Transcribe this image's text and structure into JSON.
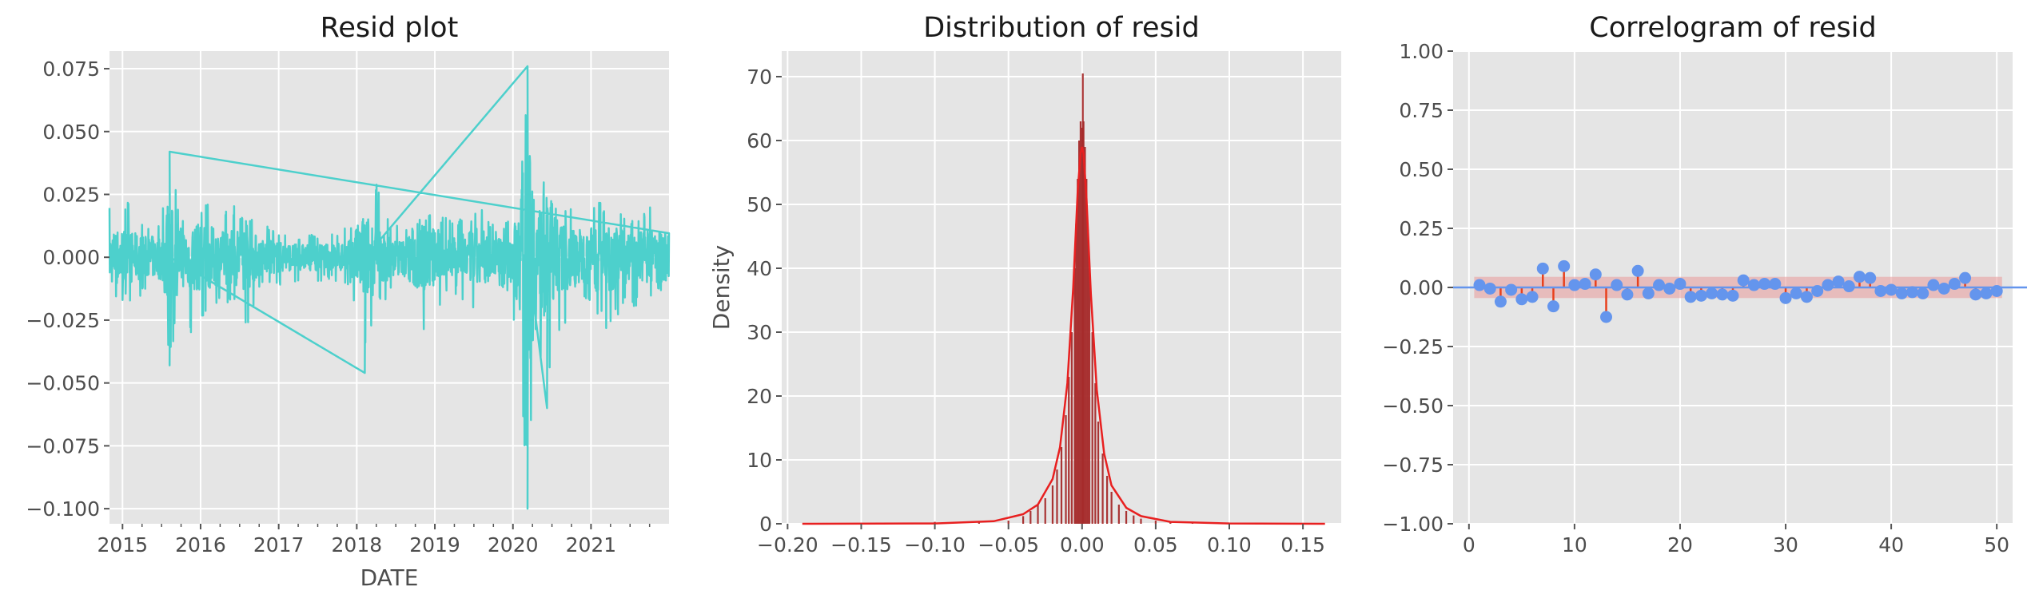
{
  "figure": {
    "panels": [
      "resid_plot",
      "distribution",
      "correlogram"
    ]
  },
  "chart_data": [
    {
      "type": "line",
      "title": "Resid plot",
      "xlabel": "DATE",
      "ylabel": "",
      "x_ticks": [
        "2015",
        "2016",
        "2017",
        "2018",
        "2019",
        "2020",
        "2021"
      ],
      "y_ticks": [
        "0.075",
        "0.050",
        "0.025",
        "0.000",
        "−0.025",
        "−0.050",
        "−0.075",
        "−0.100"
      ],
      "xlim": [
        "2014-11-01",
        "2021-12-31"
      ],
      "ylim": [
        -0.106,
        0.082
      ],
      "grid": true,
      "series_color": "#4dd0cc",
      "envelope": [
        [
          "2014-11",
          0.02,
          -0.018
        ],
        [
          "2015-01",
          0.025,
          -0.02
        ],
        [
          "2015-03",
          0.018,
          -0.017
        ],
        [
          "2015-05",
          0.015,
          -0.015
        ],
        [
          "2015-07",
          0.016,
          -0.017
        ],
        [
          "2015-08",
          0.042,
          -0.043
        ],
        [
          "2015-10",
          0.018,
          -0.025
        ],
        [
          "2015-12",
          0.017,
          -0.033
        ],
        [
          "2016-02",
          0.022,
          -0.025
        ],
        [
          "2016-04",
          0.02,
          -0.018
        ],
        [
          "2016-06",
          0.021,
          -0.02
        ],
        [
          "2016-08",
          0.016,
          -0.034
        ],
        [
          "2016-10",
          0.015,
          -0.013
        ],
        [
          "2016-12",
          0.012,
          -0.012
        ],
        [
          "2017-03",
          0.009,
          -0.01
        ],
        [
          "2017-06",
          0.009,
          -0.01
        ],
        [
          "2017-09",
          0.01,
          -0.009
        ],
        [
          "2017-12",
          0.013,
          -0.012
        ],
        [
          "2018-02",
          0.018,
          -0.046
        ],
        [
          "2018-04",
          0.03,
          -0.022
        ],
        [
          "2018-06",
          0.015,
          -0.015
        ],
        [
          "2018-08",
          0.013,
          -0.012
        ],
        [
          "2018-10",
          0.015,
          -0.034
        ],
        [
          "2018-12",
          0.02,
          -0.03
        ],
        [
          "2019-02",
          0.017,
          -0.02
        ],
        [
          "2019-04",
          0.016,
          -0.014
        ],
        [
          "2019-06",
          0.015,
          -0.02
        ],
        [
          "2019-08",
          0.02,
          -0.025
        ],
        [
          "2019-10",
          0.013,
          -0.015
        ],
        [
          "2019-12",
          0.014,
          -0.012
        ],
        [
          "2020-02",
          0.03,
          -0.04
        ],
        [
          "2020-03",
          0.076,
          -0.1
        ],
        [
          "2020-04",
          0.055,
          -0.08
        ],
        [
          "2020-05",
          0.035,
          -0.04
        ],
        [
          "2020-06",
          0.03,
          -0.06
        ],
        [
          "2020-08",
          0.018,
          -0.03
        ],
        [
          "2020-10",
          0.02,
          -0.028
        ],
        [
          "2020-12",
          0.018,
          -0.02
        ],
        [
          "2021-02",
          0.026,
          -0.025
        ],
        [
          "2021-04",
          0.018,
          -0.03
        ],
        [
          "2021-06",
          0.018,
          -0.02
        ],
        [
          "2021-08",
          0.017,
          -0.02
        ],
        [
          "2021-10",
          0.02,
          -0.018
        ],
        [
          "2021-12",
          0.022,
          -0.015
        ]
      ]
    },
    {
      "type": "bar",
      "title": "Distribution of resid",
      "xlabel": "",
      "ylabel": "Density",
      "x_ticks": [
        "−0.20",
        "−0.15",
        "−0.10",
        "−0.05",
        "0.00",
        "0.05",
        "0.10",
        "0.15"
      ],
      "y_ticks": [
        "0",
        "10",
        "20",
        "30",
        "40",
        "50",
        "60",
        "70"
      ],
      "xlim": [
        -0.204,
        0.176
      ],
      "ylim": [
        0,
        74
      ],
      "grid": true,
      "bar_color": "#a52a2a",
      "kde_color": "#e82020",
      "bins": [
        [
          -0.1,
          0.3
        ],
        [
          -0.07,
          0.2
        ],
        [
          -0.05,
          0.5
        ],
        [
          -0.04,
          1.2
        ],
        [
          -0.035,
          2.0
        ],
        [
          -0.03,
          3.0
        ],
        [
          -0.025,
          4.0
        ],
        [
          -0.02,
          6.0
        ],
        [
          -0.017,
          8.5
        ],
        [
          -0.014,
          12.0
        ],
        [
          -0.011,
          17.0
        ],
        [
          -0.009,
          23.0
        ],
        [
          -0.007,
          30.0
        ],
        [
          -0.005,
          40.0
        ],
        [
          -0.004,
          47.0
        ],
        [
          -0.003,
          54.0
        ],
        [
          -0.002,
          60.0
        ],
        [
          -0.001,
          63.0
        ],
        [
          0.0,
          62.0
        ],
        [
          0.0005,
          70.5
        ],
        [
          0.001,
          63.0
        ],
        [
          0.002,
          59.0
        ],
        [
          0.003,
          54.0
        ],
        [
          0.004,
          46.0
        ],
        [
          0.005,
          40.0
        ],
        [
          0.007,
          30.0
        ],
        [
          0.009,
          22.0
        ],
        [
          0.011,
          16.0
        ],
        [
          0.014,
          11.0
        ],
        [
          0.017,
          7.5
        ],
        [
          0.02,
          5.0
        ],
        [
          0.025,
          3.0
        ],
        [
          0.03,
          2.0
        ],
        [
          0.035,
          1.3
        ],
        [
          0.04,
          0.8
        ],
        [
          0.05,
          0.5
        ],
        [
          0.06,
          0.3
        ],
        [
          0.075,
          0.2
        ]
      ],
      "kde": [
        [
          -0.19,
          0.0
        ],
        [
          -0.1,
          0.05
        ],
        [
          -0.06,
          0.4
        ],
        [
          -0.04,
          1.5
        ],
        [
          -0.03,
          3.0
        ],
        [
          -0.02,
          7.0
        ],
        [
          -0.015,
          12.0
        ],
        [
          -0.01,
          22.0
        ],
        [
          -0.006,
          37.0
        ],
        [
          -0.003,
          52.0
        ],
        [
          -0.001,
          58.0
        ],
        [
          0.0,
          59.0
        ],
        [
          0.001,
          58.0
        ],
        [
          0.003,
          51.0
        ],
        [
          0.006,
          36.0
        ],
        [
          0.01,
          21.0
        ],
        [
          0.015,
          11.0
        ],
        [
          0.02,
          6.0
        ],
        [
          0.03,
          2.5
        ],
        [
          0.04,
          1.2
        ],
        [
          0.06,
          0.3
        ],
        [
          0.1,
          0.05
        ],
        [
          0.165,
          0.0
        ]
      ]
    },
    {
      "type": "scatter",
      "title": "Correlogram of resid",
      "xlabel": "",
      "ylabel": "",
      "x_ticks": [
        "0",
        "10",
        "20",
        "30",
        "40",
        "50"
      ],
      "y_ticks": [
        "1.00",
        "0.75",
        "0.50",
        "0.25",
        "0.00",
        "−0.25",
        "−0.50",
        "−0.75",
        "−1.00"
      ],
      "xlim": [
        -1.5,
        51.5
      ],
      "ylim": [
        -1.0,
        1.0
      ],
      "grid": true,
      "conf_band": 0.045,
      "marker_color": "#6495ed",
      "stem_color": "#e8401c",
      "band_color": "#e8a0a0",
      "lags": [
        1,
        2,
        3,
        4,
        5,
        6,
        7,
        8,
        9,
        10,
        11,
        12,
        13,
        14,
        15,
        16,
        17,
        18,
        19,
        20,
        21,
        22,
        23,
        24,
        25,
        26,
        27,
        28,
        29,
        30,
        31,
        32,
        33,
        34,
        35,
        36,
        37,
        38,
        39,
        40,
        41,
        42,
        43,
        44,
        45,
        46,
        47,
        48,
        49,
        50
      ],
      "acf": [
        0.01,
        -0.005,
        -0.06,
        -0.01,
        -0.05,
        -0.04,
        0.08,
        -0.08,
        0.09,
        0.01,
        0.015,
        0.055,
        -0.125,
        0.01,
        -0.03,
        0.07,
        -0.025,
        0.01,
        -0.005,
        0.015,
        -0.04,
        -0.035,
        -0.025,
        -0.03,
        -0.035,
        0.03,
        0.01,
        0.015,
        0.015,
        -0.045,
        -0.025,
        -0.04,
        -0.015,
        0.01,
        0.025,
        0.005,
        0.045,
        0.04,
        -0.015,
        -0.01,
        -0.025,
        -0.02,
        -0.025,
        0.01,
        -0.005,
        0.015,
        0.04,
        -0.03,
        -0.025,
        -0.015
      ]
    }
  ]
}
